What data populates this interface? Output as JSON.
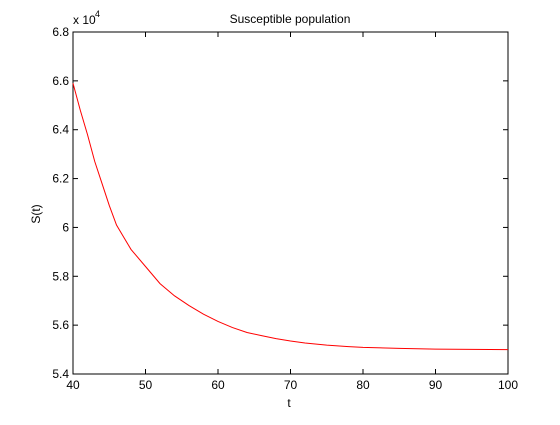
{
  "chart_data": {
    "type": "line",
    "title": "Susceptible population",
    "xlabel": "t",
    "ylabel": "S(t)",
    "y_multiplier_label": "x 10",
    "y_multiplier_exponent": "4",
    "xlim": [
      40,
      100
    ],
    "ylim": [
      5.4,
      6.8
    ],
    "x_ticks": [
      40,
      50,
      60,
      70,
      80,
      90,
      100
    ],
    "x_tick_labels": [
      "40",
      "50",
      "60",
      "70",
      "80",
      "90",
      "100"
    ],
    "y_ticks": [
      5.4,
      5.6,
      5.8,
      6.0,
      6.2,
      6.4,
      6.6,
      6.8
    ],
    "y_tick_labels": [
      "5.4",
      "5.6",
      "5.8",
      "6",
      "6.2",
      "6.4",
      "6.6",
      "6.8"
    ],
    "grid": false,
    "legend": "none",
    "series": [
      {
        "color": "#ff0000",
        "x": [
          40,
          41,
          42,
          43,
          44,
          45,
          46,
          47,
          48,
          50,
          52,
          54,
          56,
          58,
          60,
          62,
          64,
          66,
          68,
          70,
          72,
          75,
          78,
          80,
          85,
          90,
          95,
          100
        ],
        "y": [
          6.59,
          6.48,
          6.38,
          6.27,
          6.18,
          6.09,
          6.01,
          5.96,
          5.91,
          5.84,
          5.77,
          5.72,
          5.68,
          5.645,
          5.615,
          5.59,
          5.57,
          5.557,
          5.545,
          5.535,
          5.527,
          5.518,
          5.512,
          5.509,
          5.505,
          5.502,
          5.501,
          5.5
        ]
      }
    ]
  }
}
